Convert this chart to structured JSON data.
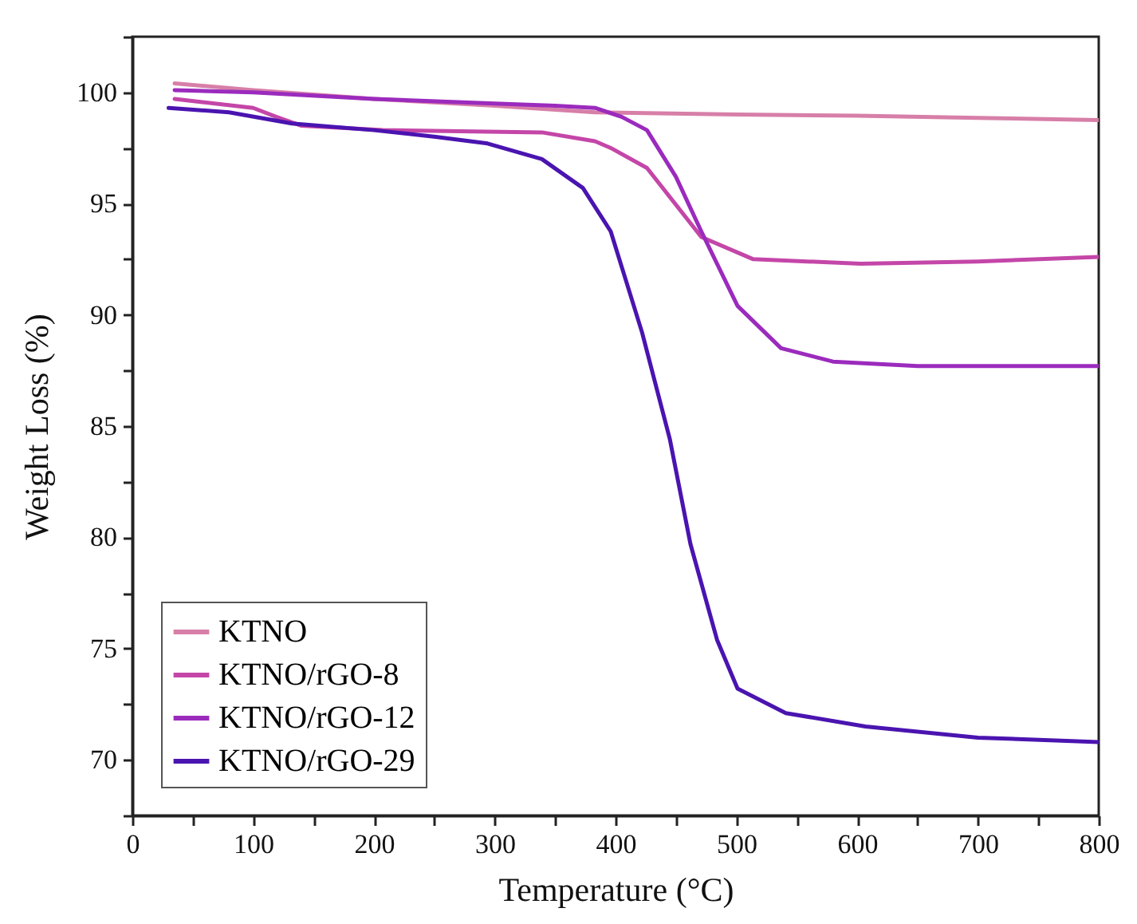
{
  "chart_data": {
    "type": "line",
    "xlabel": "Temperature (°C)",
    "ylabel": "Weight Loss (%)",
    "xlim": [
      0,
      800
    ],
    "ylim": [
      67.5,
      102.5
    ],
    "xticks": [
      0,
      {
        "value": 50,
        "label": null
      },
      100,
      {
        "value": 150,
        "label": null
      },
      200,
      {
        "value": 250,
        "label": null
      },
      300,
      {
        "value": 350,
        "label": null
      },
      400,
      {
        "value": 450,
        "label": null
      },
      500,
      {
        "value": 550,
        "label": null
      },
      600,
      {
        "value": 650,
        "label": null
      },
      700,
      {
        "value": 750,
        "label": null
      },
      800
    ],
    "yticks": [
      {
        "value": 67.5,
        "label": null
      },
      70,
      {
        "value": 72.5,
        "label": null
      },
      75,
      {
        "value": 77.5,
        "label": null
      },
      80,
      {
        "value": 82.5,
        "label": null
      },
      85,
      {
        "value": 87.5,
        "label": null
      },
      90,
      {
        "value": 92.5,
        "label": null
      },
      95,
      {
        "value": 97.5,
        "label": null
      },
      100,
      {
        "value": 102.5,
        "label": null
      }
    ],
    "grid": false,
    "legend": "bottom left",
    "series": [
      {
        "name": "KTNO",
        "color": "#d77fa8",
        "x": [
          35,
          100,
          200,
          300,
          383,
          500,
          600,
          700,
          800
        ],
        "values": [
          100.4,
          100.1,
          99.7,
          99.4,
          99.1,
          99.0,
          98.95,
          98.85,
          98.75
        ]
      },
      {
        "name": "KTNO/rGO-8",
        "color": "#c446a8",
        "x": [
          35,
          100,
          119,
          140,
          207,
          339,
          383,
          396,
          426,
          471,
          514,
          603,
          700,
          800
        ],
        "values": [
          99.7,
          99.3,
          98.9,
          98.5,
          98.3,
          98.2,
          97.8,
          97.5,
          96.6,
          93.5,
          92.5,
          92.3,
          92.4,
          92.6
        ]
      },
      {
        "name": "KTNO/rGO-12",
        "color": "#9b2bbd",
        "x": [
          35,
          100,
          200,
          300,
          350,
          383,
          405,
          426,
          450,
          471,
          501,
          537,
          580,
          650,
          800
        ],
        "values": [
          100.1,
          100.0,
          99.7,
          99.5,
          99.4,
          99.3,
          98.9,
          98.3,
          96.2,
          93.75,
          90.4,
          88.5,
          87.9,
          87.7,
          87.7
        ]
      },
      {
        "name": "KTNO/rGO-29",
        "color": "#4a14b0",
        "x": [
          30,
          80,
          132,
          200,
          251,
          294,
          339,
          373,
          396,
          422,
          445,
          462,
          484,
          501,
          541,
          607,
          700,
          800
        ],
        "values": [
          99.3,
          99.1,
          98.6,
          98.3,
          98.0,
          97.7,
          97.0,
          95.7,
          93.75,
          89.2,
          84.4,
          79.7,
          75.4,
          73.2,
          72.1,
          71.5,
          71.0,
          70.8
        ]
      }
    ]
  }
}
